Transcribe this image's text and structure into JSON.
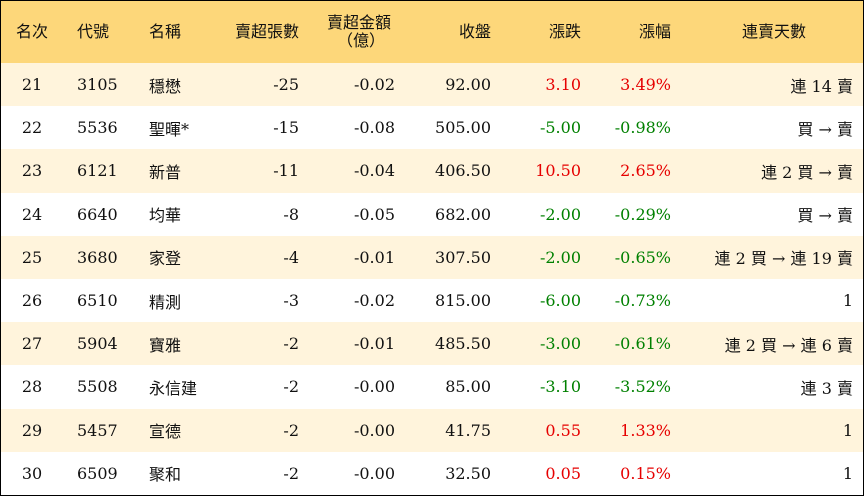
{
  "headers": {
    "rank": "名次",
    "code": "代號",
    "name": "名稱",
    "shares": "賣超張數",
    "amount_line1": "賣超金額",
    "amount_line2": "（億）",
    "close": "收盤",
    "change": "漲跌",
    "pct": "漲幅",
    "streak": "連賣天數"
  },
  "colors": {
    "header_bg": "#fdd77a",
    "stripe_bg": "#fff4dc",
    "up": "#e60000",
    "down": "#008000"
  },
  "rows": [
    {
      "rank": "21",
      "code": "3105",
      "name": "穩懋",
      "shares": "-25",
      "amount": "-0.02",
      "close": "92.00",
      "change": "3.10",
      "pct": "3.49%",
      "streak": "連 14 賣",
      "dir": "up"
    },
    {
      "rank": "22",
      "code": "5536",
      "name": "聖暉*",
      "shares": "-15",
      "amount": "-0.08",
      "close": "505.00",
      "change": "-5.00",
      "pct": "-0.98%",
      "streak": "買 → 賣",
      "dir": "dn"
    },
    {
      "rank": "23",
      "code": "6121",
      "name": "新普",
      "shares": "-11",
      "amount": "-0.04",
      "close": "406.50",
      "change": "10.50",
      "pct": "2.65%",
      "streak": "連 2 買 → 賣",
      "dir": "up"
    },
    {
      "rank": "24",
      "code": "6640",
      "name": "均華",
      "shares": "-8",
      "amount": "-0.05",
      "close": "682.00",
      "change": "-2.00",
      "pct": "-0.29%",
      "streak": "買 → 賣",
      "dir": "dn"
    },
    {
      "rank": "25",
      "code": "3680",
      "name": "家登",
      "shares": "-4",
      "amount": "-0.01",
      "close": "307.50",
      "change": "-2.00",
      "pct": "-0.65%",
      "streak": "連 2 買 → 連 19 賣",
      "dir": "dn"
    },
    {
      "rank": "26",
      "code": "6510",
      "name": "精測",
      "shares": "-3",
      "amount": "-0.02",
      "close": "815.00",
      "change": "-6.00",
      "pct": "-0.73%",
      "streak": "1",
      "dir": "dn"
    },
    {
      "rank": "27",
      "code": "5904",
      "name": "寶雅",
      "shares": "-2",
      "amount": "-0.01",
      "close": "485.50",
      "change": "-3.00",
      "pct": "-0.61%",
      "streak": "連 2 買 → 連 6 賣",
      "dir": "dn"
    },
    {
      "rank": "28",
      "code": "5508",
      "name": "永信建",
      "shares": "-2",
      "amount": "-0.00",
      "close": "85.00",
      "change": "-3.10",
      "pct": "-3.52%",
      "streak": "連 3 賣",
      "dir": "dn"
    },
    {
      "rank": "29",
      "code": "5457",
      "name": "宣德",
      "shares": "-2",
      "amount": "-0.00",
      "close": "41.75",
      "change": "0.55",
      "pct": "1.33%",
      "streak": "1",
      "dir": "up"
    },
    {
      "rank": "30",
      "code": "6509",
      "name": "聚和",
      "shares": "-2",
      "amount": "-0.00",
      "close": "32.50",
      "change": "0.05",
      "pct": "0.15%",
      "streak": "1",
      "dir": "up"
    }
  ]
}
